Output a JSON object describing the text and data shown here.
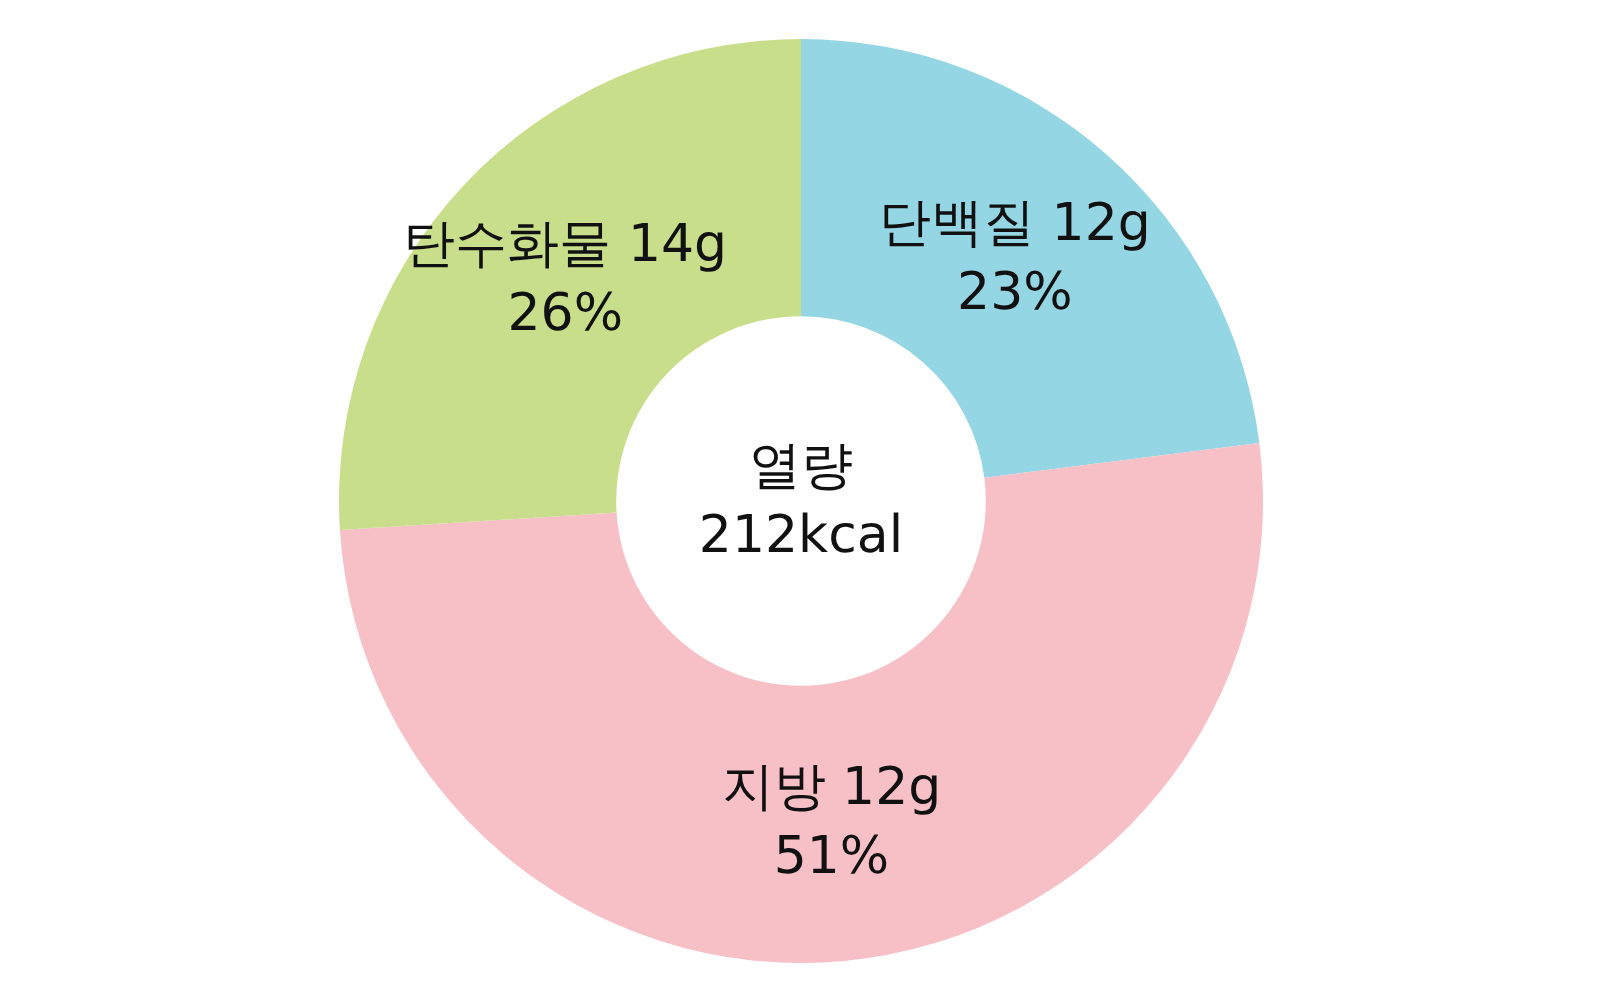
{
  "chart_data": {
    "type": "donut",
    "categories": [
      "단백질 12g",
      "지방 12g",
      "탄수화물 14g"
    ],
    "values": [
      23,
      51,
      26
    ],
    "colors": [
      "#94d6e4",
      "#f7bfc6",
      "#c8de8a"
    ],
    "value_labels": [
      "23%",
      "51%",
      "26%"
    ],
    "annotations": [
      "열량",
      "212kcal"
    ]
  }
}
